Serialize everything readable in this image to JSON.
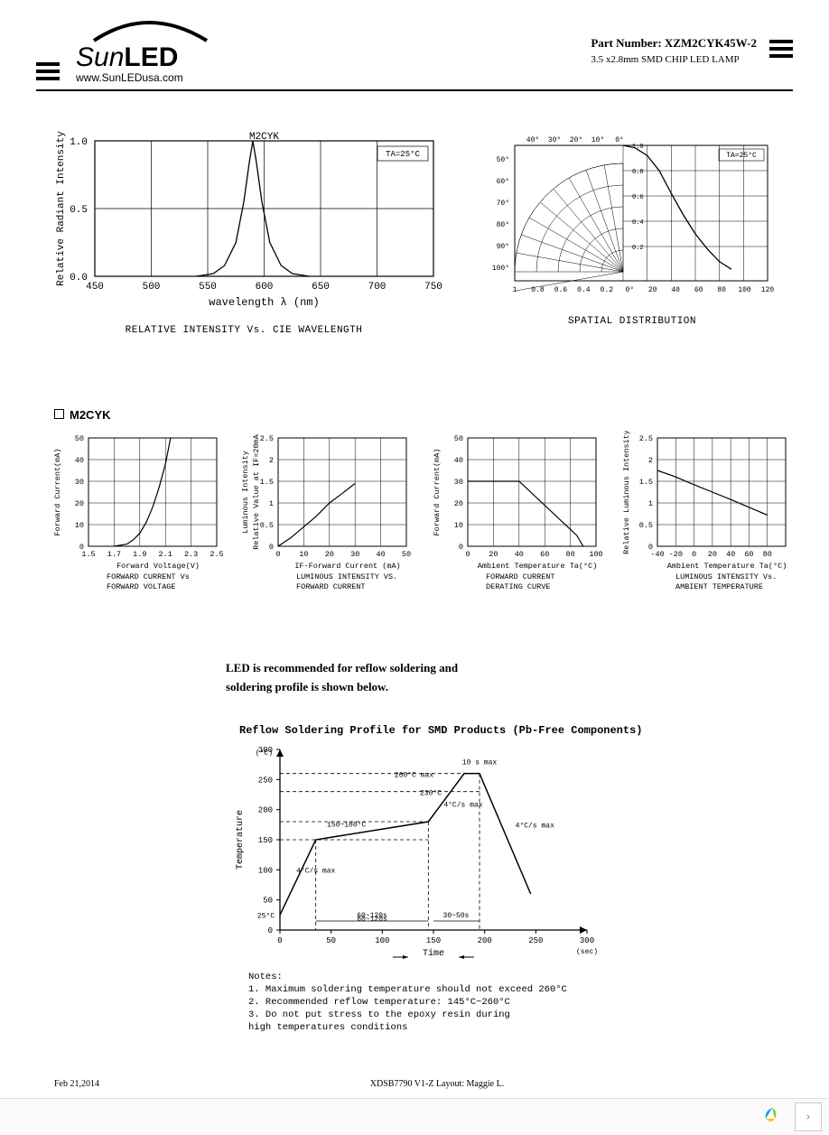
{
  "header": {
    "logo_brand": "SunLED",
    "logo_url": "www.SunLEDusa.com",
    "part_number_label": "Part Number:",
    "part_number": "XZM2CYK45W-2",
    "description": "3.5 x2.8mm SMD CHIP LED LAMP"
  },
  "chart_intensity": {
    "type": "line",
    "title_label": "M2CYK",
    "annotation": "TA=25°C",
    "xlabel": "wavelength λ (nm)",
    "ylabel": "Relative Radiant Intensity",
    "caption": "RELATIVE INTENSITY Vs. CIE WAVELENGTH",
    "xlim": [
      450,
      750
    ],
    "ylim": [
      0,
      1.0
    ],
    "xticks": [
      450,
      500,
      550,
      600,
      650,
      700,
      750
    ],
    "yticks": [
      0,
      0.5,
      1.0
    ],
    "curve": [
      [
        540,
        0
      ],
      [
        555,
        0.02
      ],
      [
        565,
        0.08
      ],
      [
        575,
        0.25
      ],
      [
        582,
        0.55
      ],
      [
        587,
        0.85
      ],
      [
        590,
        1.0
      ],
      [
        593,
        0.85
      ],
      [
        598,
        0.55
      ],
      [
        605,
        0.25
      ],
      [
        615,
        0.08
      ],
      [
        625,
        0.02
      ],
      [
        640,
        0
      ]
    ],
    "grid_color": "#000000",
    "line_color": "#000000",
    "background": "#ffffff"
  },
  "chart_spatial": {
    "type": "polar",
    "annotation": "TA=25°C",
    "caption": "SPATIAL DISTRIBUTION",
    "angle_labels": [
      "0°",
      "10°",
      "20°",
      "30°",
      "40°",
      "50°",
      "60°",
      "70°",
      "80°",
      "90°",
      "100°"
    ],
    "radial_ticks": [
      0.2,
      0.4,
      0.6,
      0.8,
      1.0
    ],
    "bottom_ticks": [
      1.0,
      0.8,
      0.6,
      0.4,
      0.2,
      "0°",
      20,
      40,
      60,
      80,
      100,
      120
    ],
    "curve": [
      [
        0,
        1.0
      ],
      [
        10,
        0.98
      ],
      [
        20,
        0.92
      ],
      [
        30,
        0.8
      ],
      [
        40,
        0.62
      ],
      [
        50,
        0.45
      ],
      [
        60,
        0.3
      ],
      [
        70,
        0.18
      ],
      [
        80,
        0.08
      ],
      [
        90,
        0.02
      ]
    ],
    "grid_color": "#000000"
  },
  "section_label": "M2CYK",
  "chart_fwd_iv": {
    "type": "line",
    "ylabel": "Forward Current(mA)",
    "xlabel": "Forward Voltage(V)",
    "caption1": "FORWARD CURRENT Vs",
    "caption2": "FORWARD VOLTAGE",
    "xlim": [
      1.5,
      2.5
    ],
    "ylim": [
      0,
      50
    ],
    "xticks": [
      1.5,
      1.7,
      1.9,
      2.1,
      2.3,
      2.5
    ],
    "yticks": [
      0,
      10,
      20,
      30,
      40,
      50
    ],
    "curve": [
      [
        1.7,
        0
      ],
      [
        1.8,
        1
      ],
      [
        1.85,
        3
      ],
      [
        1.9,
        6
      ],
      [
        1.95,
        11
      ],
      [
        2.0,
        18
      ],
      [
        2.05,
        27
      ],
      [
        2.1,
        38
      ],
      [
        2.14,
        50
      ]
    ]
  },
  "chart_lum_if": {
    "type": "line",
    "ylabel1": "Luminous Intensity",
    "ylabel2": "Relative Value at IF=20mA",
    "xlabel": "IF-Forward Current (mA)",
    "caption1": "LUMINOUS INTENSITY VS.",
    "caption2": "FORWARD CURRENT",
    "xlim": [
      0,
      50
    ],
    "ylim": [
      0,
      2.5
    ],
    "xticks": [
      0,
      10,
      20,
      30,
      40,
      50
    ],
    "yticks": [
      0,
      0.5,
      1.0,
      1.5,
      2.0,
      2.5
    ],
    "curve": [
      [
        0,
        0
      ],
      [
        5,
        0.2
      ],
      [
        10,
        0.45
      ],
      [
        15,
        0.7
      ],
      [
        20,
        1.0
      ],
      [
        25,
        1.22
      ],
      [
        30,
        1.45
      ]
    ]
  },
  "chart_derating": {
    "type": "line",
    "ylabel": "Forward Current(mA)",
    "xlabel": "Ambient Temperature Ta(°C)",
    "caption1": "FORWARD CURRENT",
    "caption2": "DERATING CURVE",
    "xlim": [
      0,
      100
    ],
    "ylim": [
      0,
      50
    ],
    "xticks": [
      0,
      20,
      40,
      60,
      80,
      100
    ],
    "yticks": [
      0,
      10,
      20,
      30,
      40,
      50
    ],
    "curve": [
      [
        0,
        30
      ],
      [
        40,
        30
      ],
      [
        85,
        5
      ],
      [
        90,
        0
      ]
    ]
  },
  "chart_lum_temp": {
    "type": "line",
    "ylabel": "Relative Luminous Intensity",
    "xlabel": "Ambient Temperature Ta(°C)",
    "caption1": "LUMINOUS INTENSITY Vs.",
    "caption2": "AMBIENT TEMPERATURE",
    "xlim": [
      -40,
      100
    ],
    "ylim": [
      0,
      2.5
    ],
    "xticks": [
      -40,
      -20,
      0,
      20,
      40,
      60,
      80
    ],
    "yticks": [
      0,
      0.5,
      1.0,
      1.5,
      2.0,
      2.5
    ],
    "curve": [
      [
        -40,
        1.75
      ],
      [
        -20,
        1.6
      ],
      [
        0,
        1.42
      ],
      [
        20,
        1.25
      ],
      [
        40,
        1.08
      ],
      [
        60,
        0.9
      ],
      [
        80,
        0.72
      ]
    ]
  },
  "body_text_l1": "LED is recommended for reflow soldering and",
  "body_text_l2": "soldering profile is shown below.",
  "reflow": {
    "title": "Reflow Soldering Profile for SMD Products (Pb-Free Components)",
    "ylabel": "Temperature",
    "xlabel": "Time",
    "y_unit": "(°C)",
    "x_unit": "(sec)",
    "xlim": [
      0,
      300
    ],
    "ylim": [
      0,
      300
    ],
    "xticks": [
      0,
      50,
      100,
      150,
      200,
      250,
      300
    ],
    "yticks": [
      0,
      50,
      100,
      150,
      200,
      250,
      300
    ],
    "annotations": {
      "rate1": "4°C/s max",
      "preheat": "150~180°C",
      "preheat_time": "60~120s",
      "ramp": "4°C/s max",
      "peak_time": "10 s max",
      "peak_temp": "260°C max",
      "threshold": "230°C",
      "soak_time": "30~50s",
      "cooldown": "4°C/s max",
      "start_temp": "25°C"
    },
    "profile": [
      [
        0,
        25
      ],
      [
        35,
        150
      ],
      [
        145,
        180
      ],
      [
        180,
        260
      ],
      [
        195,
        260
      ],
      [
        245,
        60
      ]
    ]
  },
  "notes": {
    "title": "Notes:",
    "n1": "1. Maximum soldering temperature should not exceed 260°C",
    "n2": "2. Recommended reflow temperature: 145°C~260°C",
    "n3": "3. Do not put stress to the epoxy resin during",
    "n3b": "   high temperatures conditions"
  },
  "footer": {
    "date": "Feb 21,2014",
    "doc": "XDSB7790  V1-Z  Layout: Maggie L."
  }
}
